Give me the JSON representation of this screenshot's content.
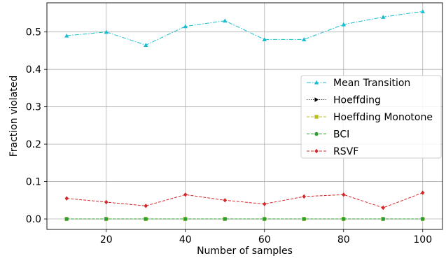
{
  "chart_data": {
    "type": "line",
    "xlabel": "Number of samples",
    "ylabel": "Fraction violated",
    "xlim": [
      5,
      105
    ],
    "ylim": [
      -0.028,
      0.578
    ],
    "xticks": [
      20,
      40,
      60,
      80,
      100
    ],
    "yticks": [
      0.0,
      0.1,
      0.2,
      0.3,
      0.4,
      0.5
    ],
    "xtick_labels": [
      "20",
      "40",
      "60",
      "80",
      "100"
    ],
    "ytick_labels": [
      "0.0",
      "0.1",
      "0.2",
      "0.3",
      "0.4",
      "0.5"
    ],
    "grid": true,
    "legend_position": "center-right",
    "x": [
      10,
      20,
      30,
      40,
      50,
      60,
      70,
      80,
      90,
      100
    ],
    "series": [
      {
        "name": "Mean Transition",
        "color": "#17becf",
        "marker": "triangle",
        "linestyle": "dashdot",
        "values": [
          0.49,
          0.5,
          0.465,
          0.515,
          0.53,
          0.48,
          0.48,
          0.52,
          0.54,
          0.555
        ]
      },
      {
        "name": "Hoeffding",
        "color": "#000000",
        "marker": "triangle-right",
        "linestyle": "dotted",
        "values": [
          0,
          0,
          0,
          0,
          0,
          0,
          0,
          0,
          0,
          0
        ]
      },
      {
        "name": "Hoeffding Monotone",
        "color": "#bcbd22",
        "marker": "square",
        "linestyle": "dashed",
        "values": [
          0,
          0,
          0,
          0,
          0,
          0,
          0,
          0,
          0,
          0
        ]
      },
      {
        "name": "BCI",
        "color": "#2ca02c",
        "marker": "circle",
        "linestyle": "dashed",
        "values": [
          0,
          0,
          0,
          0,
          0,
          0,
          0,
          0,
          0,
          0
        ]
      },
      {
        "name": "RSVF",
        "color": "#d62728",
        "marker": "diamond",
        "linestyle": "dashed",
        "values": [
          0.055,
          0.045,
          0.035,
          0.065,
          0.05,
          0.04,
          0.06,
          0.065,
          0.03,
          0.07
        ]
      }
    ]
  }
}
